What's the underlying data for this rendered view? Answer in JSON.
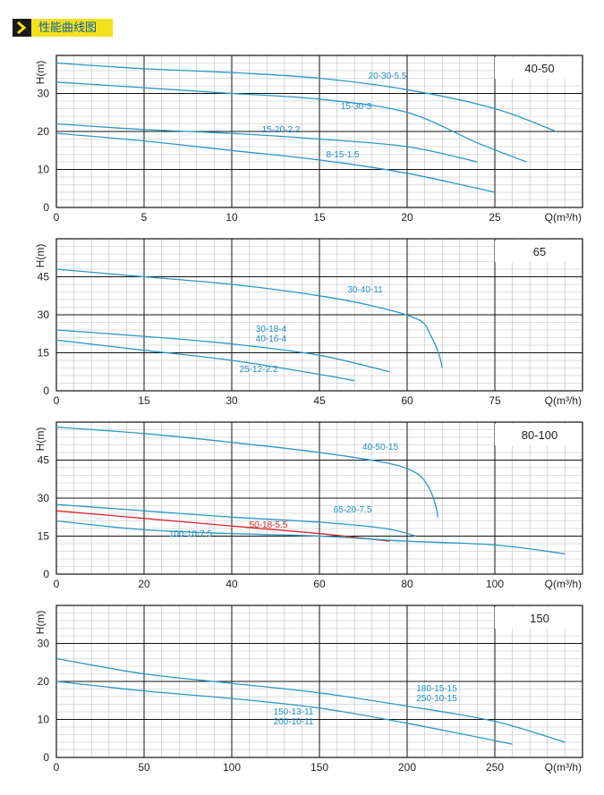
{
  "header": {
    "title": "性能曲线图",
    "arrow_icon": "chevron-right-icon"
  },
  "colors": {
    "curve": "#2a97c4",
    "curve_red": "#d6262c",
    "label": "#1f8fc7",
    "major_grid": "#111111",
    "minor_grid": "#bdbdbd",
    "header_bg": "#f2e11b"
  },
  "chart_data": [
    {
      "type": "line",
      "title": "40-50",
      "ylabel": "H(m)",
      "xlabel": "Q(m³/h)",
      "xlim": [
        0,
        30
      ],
      "ylim": [
        0,
        40
      ],
      "x_ticks": [
        "0",
        "5",
        "10",
        "15",
        "20",
        "25"
      ],
      "y_ticks": [
        "0",
        "10",
        "20",
        "30"
      ],
      "grid": true,
      "series": [
        {
          "name": "20-30-5.5",
          "x": [
            0,
            5,
            10,
            15,
            20,
            25,
            28.5
          ],
          "y": [
            38,
            36.5,
            35.5,
            34,
            31,
            26,
            20
          ]
        },
        {
          "name": "15-30-3",
          "x": [
            0,
            5,
            10,
            15,
            20,
            24,
            26.8
          ],
          "y": [
            33,
            31.5,
            30,
            28.5,
            25,
            17,
            12
          ]
        },
        {
          "name": "15-20-2.2",
          "x": [
            0,
            5,
            10,
            15,
            20,
            24
          ],
          "y": [
            22,
            20.5,
            19.5,
            18,
            16,
            12
          ]
        },
        {
          "name": "8-15-1.5",
          "x": [
            0,
            5,
            10,
            15,
            20,
            25
          ],
          "y": [
            19.5,
            17.5,
            15,
            12.5,
            9,
            4
          ]
        }
      ]
    },
    {
      "type": "line",
      "title": "65",
      "ylabel": "H(m)",
      "xlabel": "Q(m³/h)",
      "xlim": [
        0,
        90
      ],
      "ylim": [
        0,
        60
      ],
      "x_ticks": [
        "0",
        "15",
        "30",
        "45",
        "60",
        "75"
      ],
      "y_ticks": [
        "0",
        "15",
        "30",
        "45"
      ],
      "grid": true,
      "series": [
        {
          "name": "30-40-11",
          "x": [
            0,
            15,
            30,
            45,
            55,
            62,
            64,
            65.5,
            66
          ],
          "y": [
            48,
            45,
            42,
            37.5,
            33,
            28,
            22,
            14,
            9
          ]
        },
        {
          "name": "30-18-4 40-16-4",
          "x": [
            0,
            15,
            30,
            45,
            57
          ],
          "y": [
            24,
            21.5,
            18.5,
            14,
            7.5
          ]
        },
        {
          "name": "25-12-2.2",
          "x": [
            0,
            15,
            30,
            45,
            51
          ],
          "y": [
            20,
            16,
            12,
            6.5,
            4
          ]
        }
      ]
    },
    {
      "type": "line",
      "title": "80-100",
      "ylabel": "H(m)",
      "xlabel": "Q(m³/h)",
      "xlim": [
        0,
        120
      ],
      "ylim": [
        0,
        60
      ],
      "x_ticks": [
        "0",
        "20",
        "40",
        "60",
        "80",
        "100"
      ],
      "y_ticks": [
        "0",
        "15",
        "30",
        "45"
      ],
      "grid": true,
      "series": [
        {
          "name": "40-50-15",
          "x": [
            0,
            20,
            40,
            60,
            75,
            82,
            85,
            86.5,
            87
          ],
          "y": [
            58,
            55.5,
            52,
            48,
            44,
            40,
            34,
            27,
            22.5
          ]
        },
        {
          "name": "65-20-7.5",
          "x": [
            0,
            20,
            40,
            60,
            75,
            82
          ],
          "y": [
            27.5,
            25,
            22.5,
            20.5,
            18,
            15
          ]
        },
        {
          "name": "50-18-5.5",
          "x": [
            0,
            20,
            40,
            60,
            76
          ],
          "y": [
            25,
            22,
            19,
            16,
            13
          ],
          "color": "red"
        },
        {
          "name": "100-10-7.5",
          "x": [
            0,
            20,
            40,
            60,
            80,
            100,
            116
          ],
          "y": [
            21,
            17.5,
            16,
            15,
            13,
            11.5,
            8
          ]
        }
      ]
    },
    {
      "type": "line",
      "title": "150",
      "ylabel": "H(m)",
      "xlabel": "Q(m³/h)",
      "xlim": [
        0,
        300
      ],
      "ylim": [
        0,
        40
      ],
      "x_ticks": [
        "0",
        "50",
        "100",
        "150",
        "200",
        "250"
      ],
      "y_ticks": [
        "0",
        "10",
        "20",
        "30"
      ],
      "grid": true,
      "series": [
        {
          "name": "180-15-15 250-10-15",
          "x": [
            0,
            50,
            100,
            150,
            200,
            250,
            290
          ],
          "y": [
            26,
            22,
            19.5,
            17,
            13.5,
            9.5,
            4
          ]
        },
        {
          "name": "150-13-11 200-10-11",
          "x": [
            0,
            50,
            100,
            150,
            200,
            260
          ],
          "y": [
            20,
            17.5,
            15.5,
            13,
            9,
            3.5
          ]
        }
      ]
    }
  ]
}
